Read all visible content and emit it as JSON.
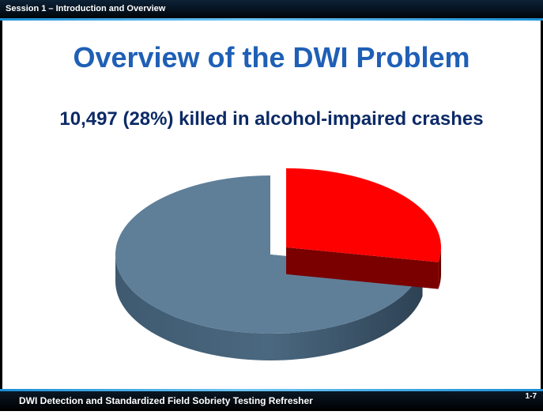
{
  "header": {
    "session_label": "Session 1 – Introduction and Overview"
  },
  "slide": {
    "title": "Overview of the DWI Problem",
    "subtitle": "10,497 (28%) killed in alcohol-impaired crashes"
  },
  "footer": {
    "course_title": "DWI Detection and Standardized Field Sobriety  Testing Refresher",
    "page_number": "1-7"
  },
  "colors": {
    "title": "#1f5fb6",
    "subtitle": "#0c2a66",
    "alcohol_slice": "#ff0000",
    "alcohol_slice_side": "#7a0000",
    "other_slice": "#5f7f99",
    "other_slice_side": "#3c5569",
    "header_rule": "#1c8fd6"
  },
  "chart_data": {
    "type": "pie",
    "style": "3d-exploded",
    "title": "",
    "slices": [
      {
        "label": "",
        "value": 28,
        "color": "#ff0000",
        "side_color": "#7a0000",
        "exploded": true
      },
      {
        "label": "",
        "value": 72,
        "color": "#5f7f99",
        "side_color": "#3c5569",
        "exploded": false
      }
    ]
  }
}
